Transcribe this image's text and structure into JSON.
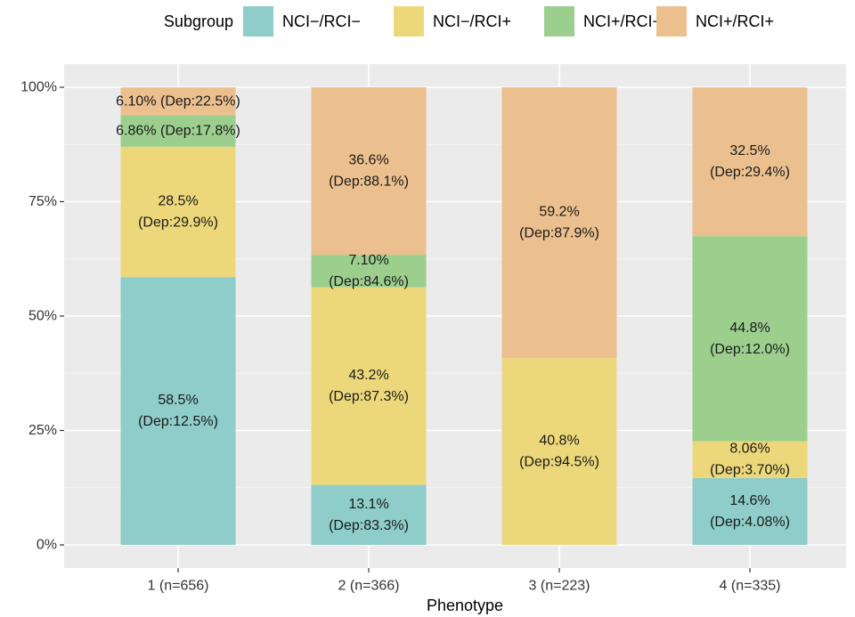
{
  "chart_data": {
    "type": "bar",
    "stacked": true,
    "xlabel": "Phenotype",
    "ylabel": "",
    "ylim": [
      0,
      100
    ],
    "y_ticks": [
      0,
      25,
      50,
      75,
      100
    ],
    "y_tick_labels": [
      "0%",
      "25%",
      "50%",
      "75%",
      "100%"
    ],
    "grid": true,
    "legend": {
      "title": "Subgroup",
      "position": "top"
    },
    "categories": [
      "1 (n=656)",
      "2 (n=366)",
      "3 (n=223)",
      "4 (n=335)"
    ],
    "series": [
      {
        "name": "NCI−/RCI−",
        "color": "#8ecdc9",
        "values": [
          58.5,
          13.1,
          0,
          14.6
        ],
        "labels": [
          [
            "58.5%",
            "(Dep:12.5%)"
          ],
          [
            "13.1%",
            "(Dep:83.3%)"
          ],
          null,
          [
            "14.6%",
            "(Dep:4.08%)"
          ]
        ]
      },
      {
        "name": "NCI−/RCI+",
        "color": "#ecd87b",
        "values": [
          28.5,
          43.2,
          40.8,
          8.06
        ],
        "labels": [
          [
            "28.5%",
            "(Dep:29.9%)"
          ],
          [
            "43.2%",
            "(Dep:87.3%)"
          ],
          [
            "40.8%",
            "(Dep:94.5%)"
          ],
          [
            "8.06%",
            "(Dep:3.70%)"
          ]
        ]
      },
      {
        "name": "NCI+/RCI−",
        "color": "#9ccf8e",
        "values": [
          6.86,
          7.1,
          0,
          44.8
        ],
        "labels": [
          [
            "6.86% (Dep:17.8%)"
          ],
          [
            "7.10%",
            "(Dep:84.6%)"
          ],
          null,
          [
            "44.8%",
            "(Dep:12.0%)"
          ]
        ]
      },
      {
        "name": "NCI+/RCI+",
        "color": "#ebc08e",
        "values": [
          6.1,
          36.6,
          59.2,
          32.5
        ],
        "labels": [
          [
            "6.10% (Dep:22.5%)"
          ],
          [
            "36.6%",
            "(Dep:88.1%)"
          ],
          [
            "59.2%",
            "(Dep:87.9%)"
          ],
          [
            "32.5%",
            "(Dep:29.4%)"
          ]
        ]
      }
    ]
  }
}
